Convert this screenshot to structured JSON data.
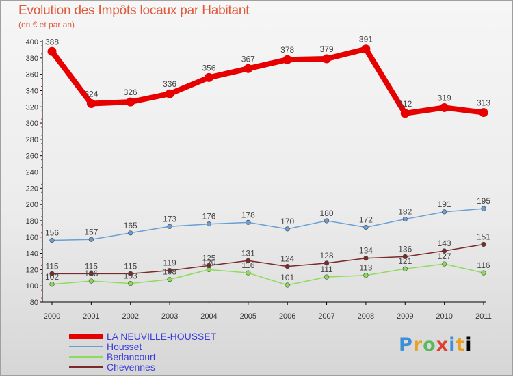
{
  "header": {
    "title": "Evolution des Impôts locaux par Habitant",
    "subtitle": "(en € et par an)"
  },
  "logo": {
    "text": "Proxiti"
  },
  "chart_data": {
    "type": "line",
    "categories": [
      "2000",
      "2001",
      "2002",
      "2003",
      "2004",
      "2005",
      "2006",
      "2007",
      "2008",
      "2009",
      "2010",
      "2011"
    ],
    "ylim": [
      80,
      400
    ],
    "yticks": [
      80,
      100,
      120,
      140,
      160,
      180,
      200,
      220,
      240,
      260,
      280,
      300,
      320,
      340,
      360,
      380,
      400
    ],
    "grid": false,
    "legend_position": "bottom-left",
    "series": [
      {
        "name": "LA NEUVILLE-HOUSSET",
        "color": "#e60000",
        "emphasis": true,
        "values": [
          388,
          324,
          326,
          336,
          356,
          367,
          378,
          379,
          391,
          312,
          319,
          313
        ]
      },
      {
        "name": "Housset",
        "color": "#6a9fd4",
        "emphasis": false,
        "values": [
          156,
          157,
          165,
          173,
          176,
          178,
          170,
          180,
          172,
          182,
          191,
          195
        ]
      },
      {
        "name": "Berlancourt",
        "color": "#8cdc5a",
        "emphasis": false,
        "values": [
          102,
          106,
          103,
          108,
          120,
          116,
          101,
          111,
          113,
          121,
          127,
          116
        ]
      },
      {
        "name": "Chevennes",
        "color": "#7a2a2a",
        "emphasis": false,
        "values": [
          115,
          115,
          115,
          119,
          125,
          131,
          124,
          128,
          134,
          136,
          143,
          151
        ]
      }
    ]
  }
}
